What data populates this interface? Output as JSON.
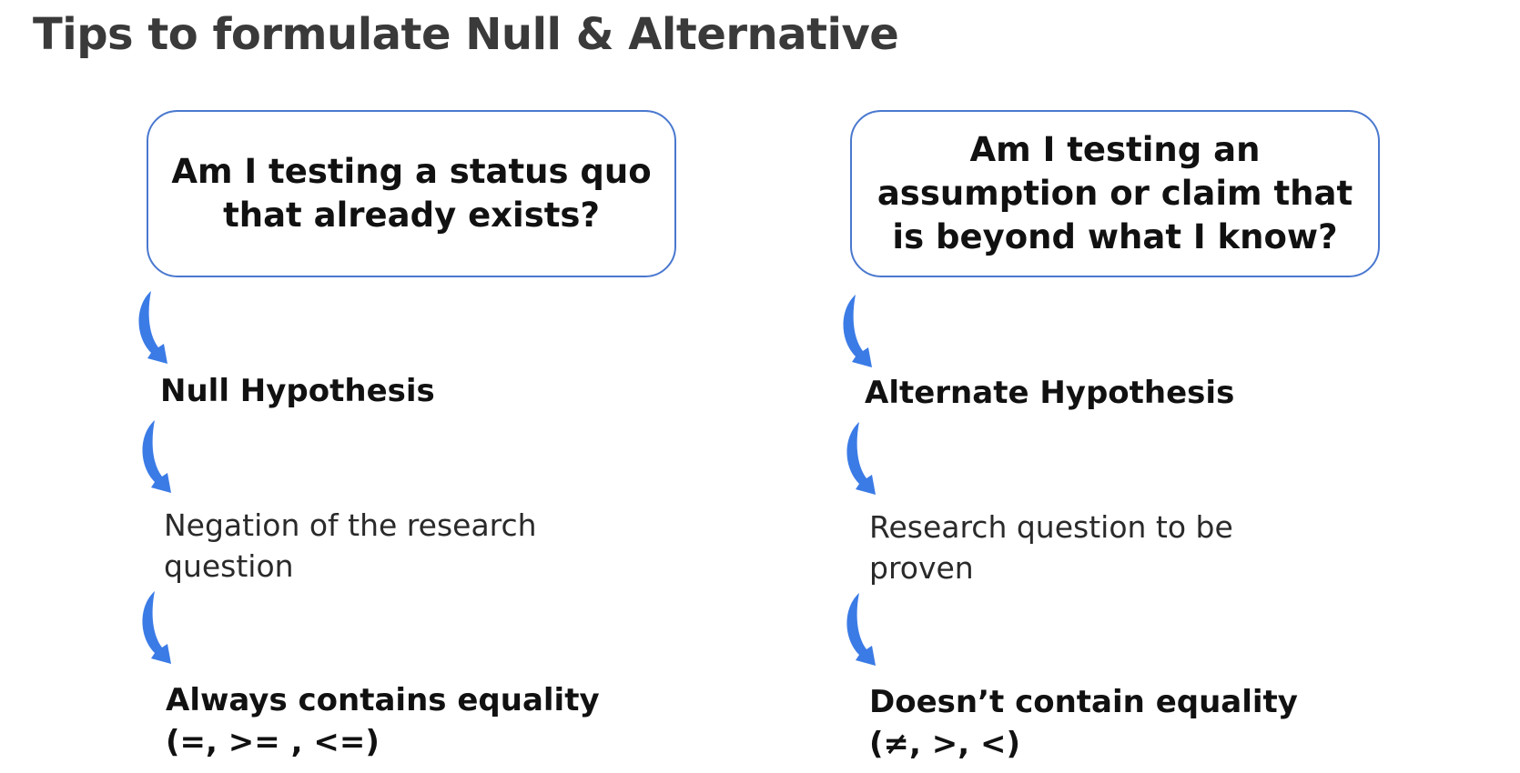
{
  "title": "Tips to formulate Null & Alternative",
  "left": {
    "question": "Am I testing a status quo that already exists?",
    "hypothesis": "Null Hypothesis",
    "description_line1": "Negation of the research",
    "description_line2": "question",
    "equality_line1": "Always contains equality",
    "equality_line2": "(=, >= , <=)"
  },
  "right": {
    "question": "Am I testing an assumption or claim that is beyond what I know?",
    "hypothesis": "Alternate Hypothesis",
    "description_line1": "Research question to be",
    "description_line2": "proven",
    "equality_line1": "Doesn’t contain equality",
    "equality_line2": "(≠, >, <)"
  },
  "colors": {
    "box_border": "#4a78cf",
    "arrow": "#3b7be6",
    "title": "#3a3a3a"
  },
  "icons": {
    "arrow": "curved-down-arrow-icon"
  }
}
